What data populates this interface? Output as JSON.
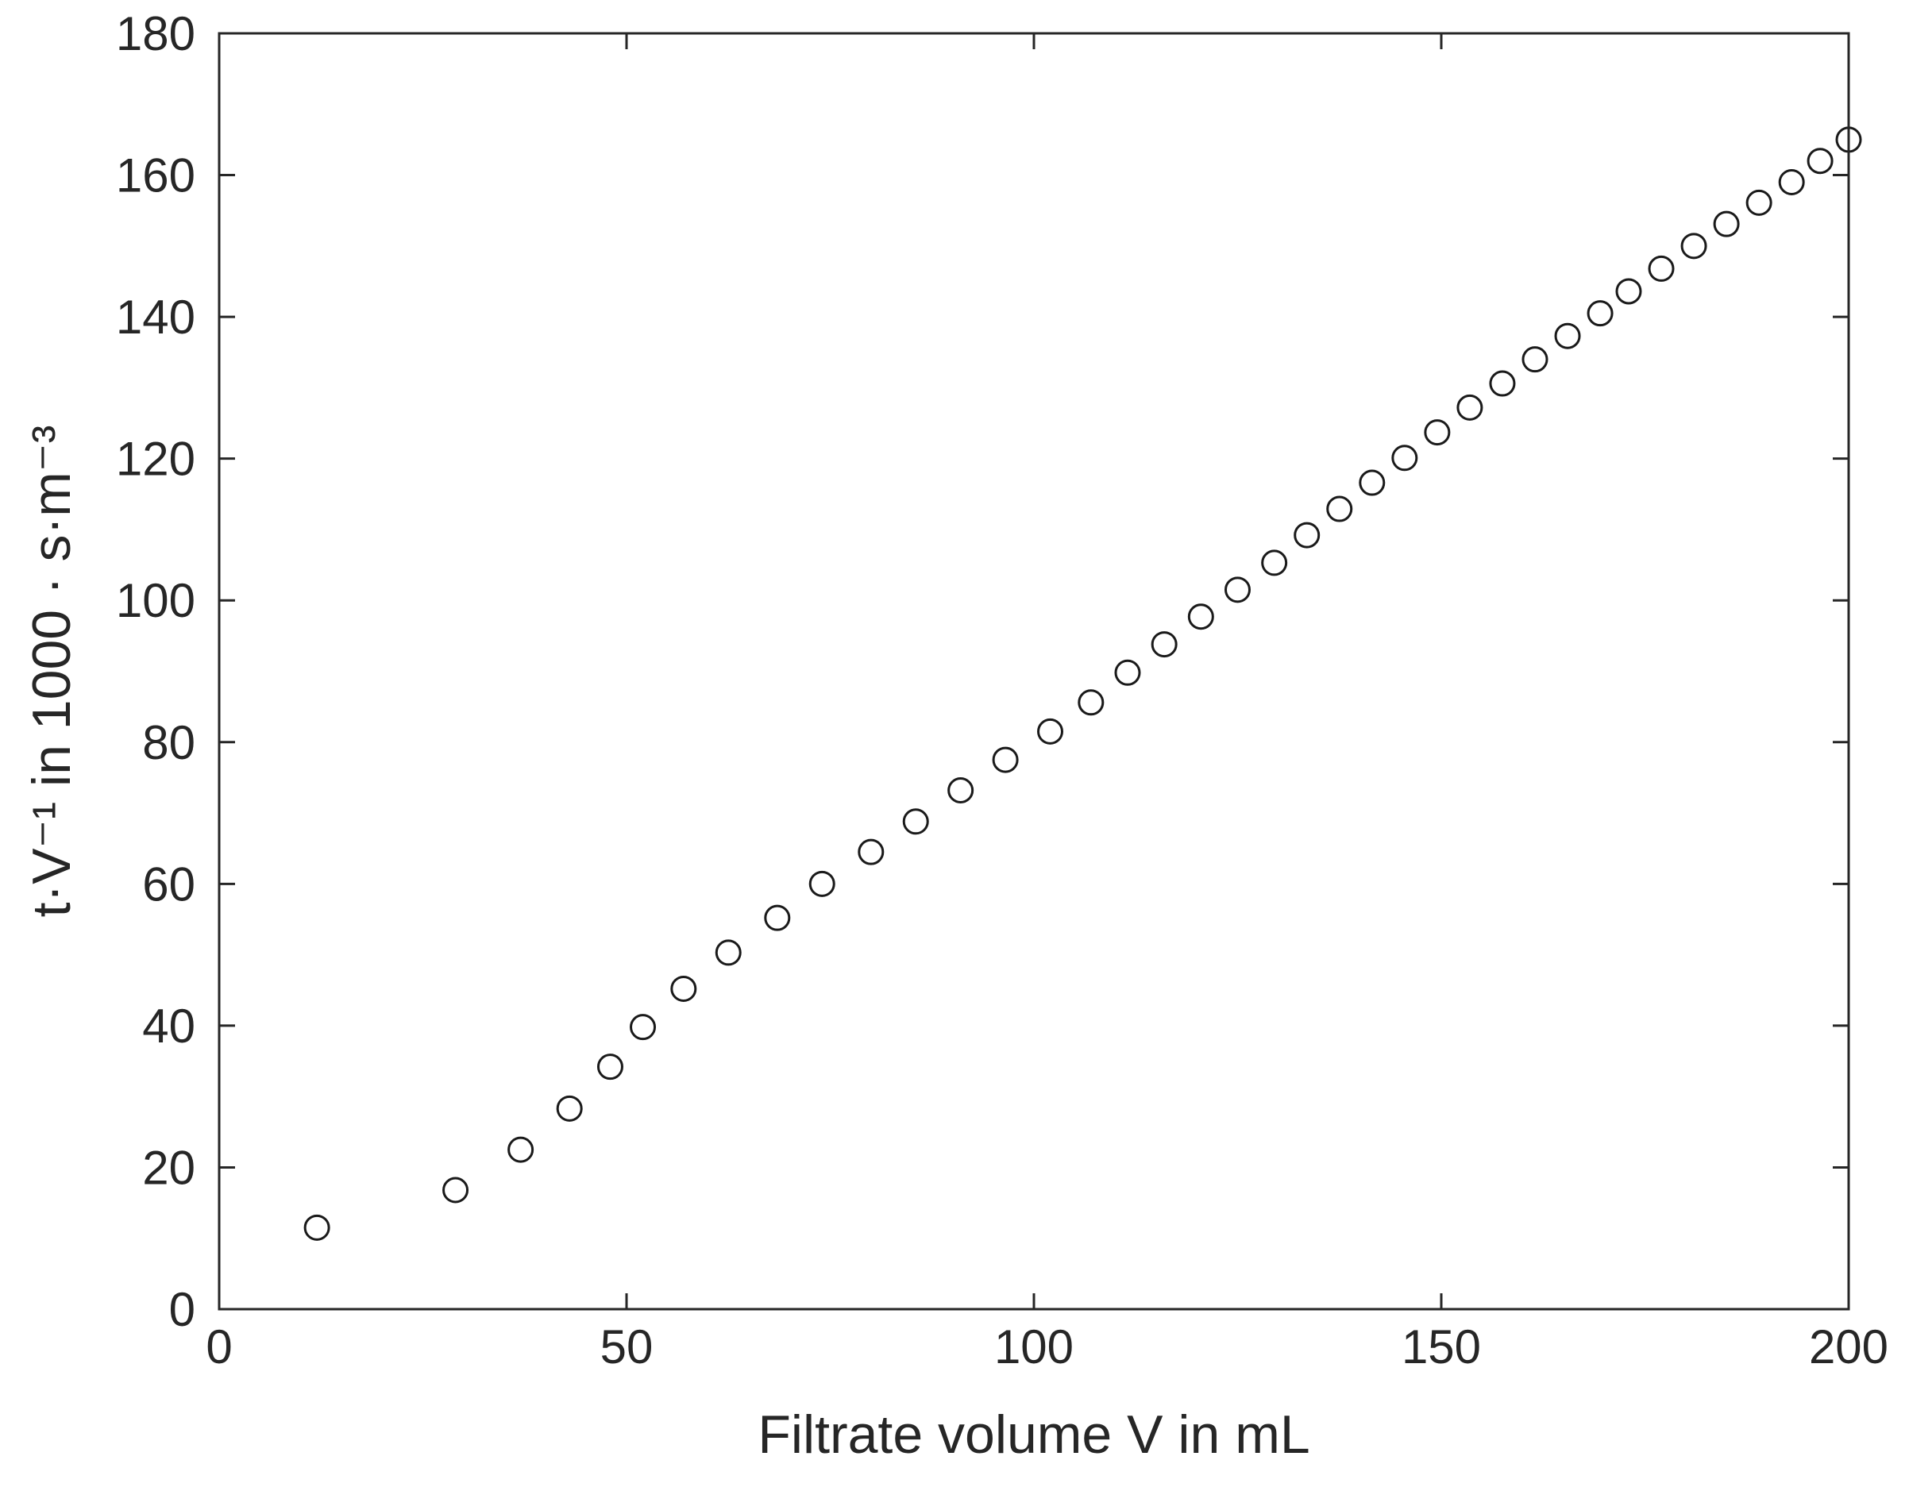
{
  "chart_data": {
    "type": "scatter",
    "title": "",
    "xlabel": "Filtrate volume V in mL",
    "ylabel": "t·V⁻¹ in 1000 · s·m⁻³",
    "xlim": [
      0,
      200
    ],
    "ylim": [
      0,
      180
    ],
    "xticks": [
      0,
      50,
      100,
      150,
      200
    ],
    "yticks": [
      0,
      20,
      40,
      60,
      80,
      100,
      120,
      140,
      160,
      180
    ],
    "grid": false,
    "legend": "none",
    "marker": "open-circle",
    "marker_color": "#1a1a1a",
    "series": [
      {
        "x": [
          12,
          29,
          37,
          43,
          48,
          52,
          57,
          62.5,
          68.5,
          74,
          80,
          85.5,
          91,
          96.5,
          102,
          107,
          111.5,
          116,
          120.5,
          125,
          129.5,
          133.5,
          137.5,
          141.5,
          145.5,
          149.5,
          153.5,
          157.5,
          161.5,
          165.5,
          169.5,
          173,
          177,
          181,
          185,
          189,
          193,
          196.5,
          200
        ],
        "y": [
          11.5,
          16.8,
          22.5,
          28.3,
          34.2,
          39.8,
          45.2,
          50.3,
          55.2,
          60.0,
          64.5,
          68.8,
          73.2,
          77.5,
          81.5,
          85.6,
          89.8,
          93.8,
          97.7,
          101.5,
          105.3,
          109.2,
          112.9,
          116.6,
          120.1,
          123.7,
          127.2,
          130.6,
          134.0,
          137.3,
          140.5,
          143.6,
          146.8,
          150.0,
          153.1,
          156.1,
          159.0,
          162.0,
          165.0
        ]
      }
    ]
  }
}
